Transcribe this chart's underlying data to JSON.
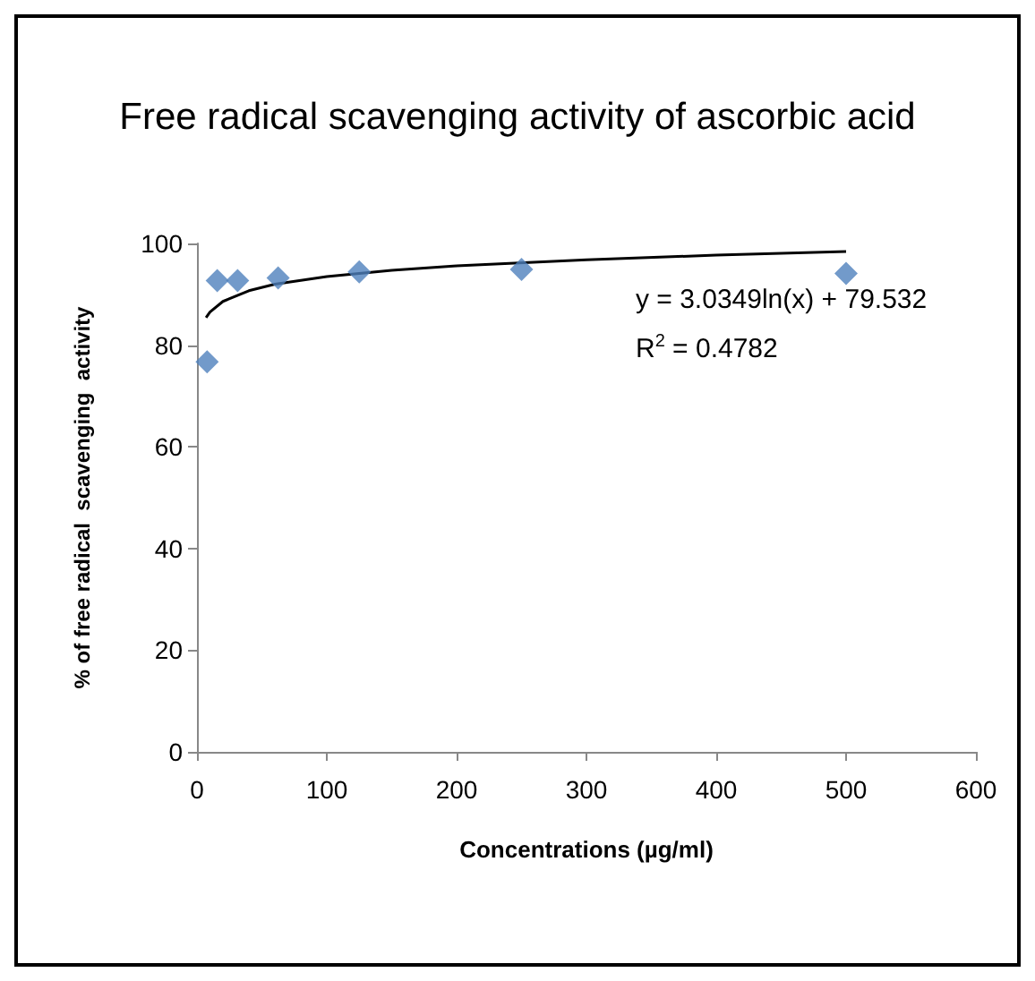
{
  "chart_data": {
    "type": "scatter",
    "title": "Free radical scavenging activity of ascorbic acid",
    "xlabel": "Concentrations (µg/ml)",
    "ylabel": "% of free radical  scavenging  activity",
    "x": [
      7.8,
      15.6,
      31.3,
      62.5,
      125,
      250,
      500
    ],
    "series": [
      {
        "color": "#4f81bd",
        "values": [
          76.7,
          92.7,
          92.7,
          93.2,
          94.4,
          94.9,
          94.1
        ],
        "marker": "diamond"
      },
      {
        "type": "line",
        "color": "#000000",
        "x": [
          7,
          10,
          20,
          40,
          60,
          100,
          150,
          200,
          300,
          400,
          500
        ],
        "values": [
          85.4,
          86.5,
          88.6,
          90.7,
          92.0,
          93.5,
          94.7,
          95.6,
          96.8,
          97.7,
          98.4
        ],
        "marker": "none",
        "line_style": "solid"
      }
    ],
    "annotations": [
      "y = 3.0349ln(x) + 79.532",
      "R$^{2}$ = 0.4782"
    ],
    "xlim": [
      0,
      600
    ],
    "xticks": [
      0,
      100,
      200,
      300,
      400,
      500,
      600
    ],
    "ylim": [
      0,
      100
    ],
    "yticks": [
      0,
      20,
      40,
      60,
      80,
      100
    ],
    "grid": false
  }
}
